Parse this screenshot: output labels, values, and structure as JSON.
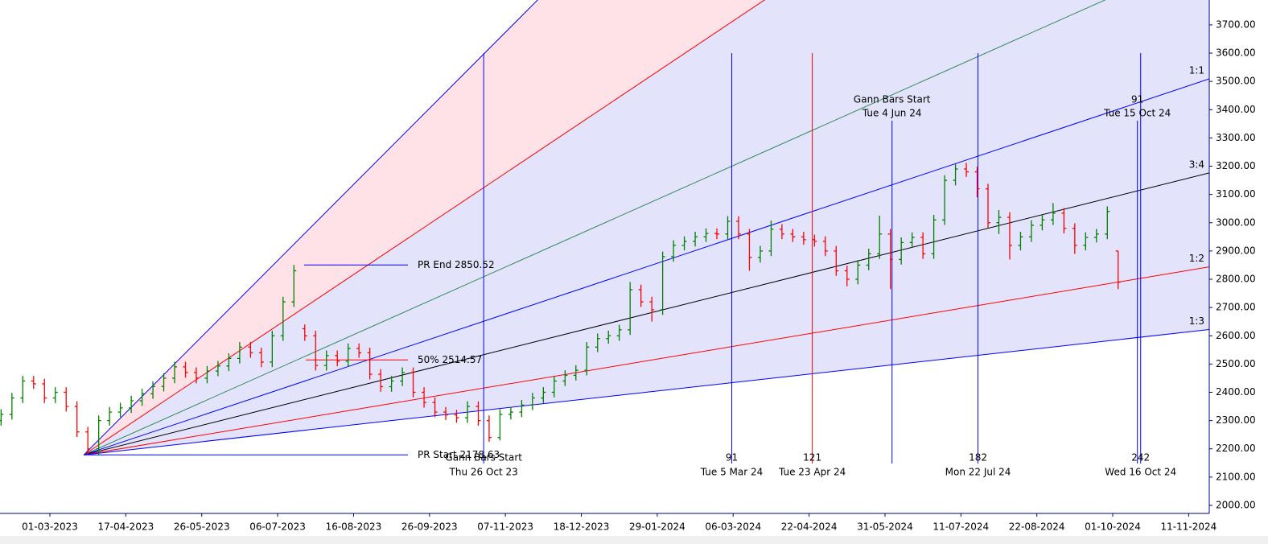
{
  "chart_data": {
    "type": "ohlc",
    "xlim": [
      -18.4,
      427.6
    ],
    "ylim": [
      1971.5,
      3788
    ],
    "xticks": [
      {
        "value": 0,
        "label": "01-03-2023"
      },
      {
        "value": 28,
        "label": "17-04-2023"
      },
      {
        "value": 56,
        "label": "26-05-2023"
      },
      {
        "value": 84,
        "label": "06-07-2023"
      },
      {
        "value": 112,
        "label": "16-08-2023"
      },
      {
        "value": 140,
        "label": "26-09-2023"
      },
      {
        "value": 168,
        "label": "07-11-2023"
      },
      {
        "value": 196,
        "label": "18-12-2023"
      },
      {
        "value": 224,
        "label": "29-01-2024"
      },
      {
        "value": 252,
        "label": "06-03-2024"
      },
      {
        "value": 280,
        "label": "22-04-2024"
      },
      {
        "value": 308,
        "label": "31-05-2024"
      },
      {
        "value": 336,
        "label": "11-07-2024"
      },
      {
        "value": 364,
        "label": "22-08-2024"
      },
      {
        "value": 392,
        "label": "01-10-2024"
      },
      {
        "value": 420,
        "label": "11-11-2024"
      }
    ],
    "yticks": [
      {
        "value": 2000,
        "label": "2000.00"
      },
      {
        "value": 2100,
        "label": "2100.00"
      },
      {
        "value": 2200,
        "label": "2200.00"
      },
      {
        "value": 2300,
        "label": "2300.00"
      },
      {
        "value": 2400,
        "label": "2400.00"
      },
      {
        "value": 2500,
        "label": "2500.00"
      },
      {
        "value": 2600,
        "label": "2600.00"
      },
      {
        "value": 2700,
        "label": "2700.00"
      },
      {
        "value": 2800,
        "label": "2800.00"
      },
      {
        "value": 2900,
        "label": "2900.00"
      },
      {
        "value": 3000,
        "label": "3000.00"
      },
      {
        "value": 3100,
        "label": "3100.00"
      },
      {
        "value": 3200,
        "label": "3200.00"
      },
      {
        "value": 3300,
        "label": "3300.00"
      },
      {
        "value": 3400,
        "label": "3400.00"
      },
      {
        "value": 3500,
        "label": "3500.00"
      },
      {
        "value": 3600,
        "label": "3600.00"
      },
      {
        "value": 3700,
        "label": "3700.00"
      }
    ],
    "up_color": "#008000",
    "down_color": "#ff0000",
    "x": [
      -18,
      -14,
      -10,
      -6,
      -2,
      2,
      6,
      10,
      14,
      18,
      22,
      26,
      30,
      34,
      38,
      42,
      46,
      50,
      54,
      58,
      62,
      66,
      70,
      74,
      78,
      82,
      86,
      90,
      94,
      98,
      102,
      106,
      110,
      114,
      118,
      122,
      126,
      130,
      134,
      138,
      142,
      146,
      150,
      154,
      158,
      162,
      166,
      170,
      174,
      178,
      182,
      186,
      190,
      194,
      198,
      202,
      206,
      210,
      214,
      218,
      222,
      226,
      230,
      234,
      238,
      242,
      246,
      250,
      254,
      258,
      262,
      266,
      270,
      274,
      278,
      282,
      286,
      290,
      294,
      298,
      302,
      306,
      310,
      314,
      318,
      322,
      326,
      330,
      334,
      338,
      342,
      346,
      350,
      354,
      358,
      362,
      366,
      370,
      374,
      378,
      382,
      386,
      390,
      394
    ],
    "open": [
      2300,
      2322,
      2380,
      2440,
      2430,
      2380,
      2400,
      2350,
      2260,
      2200,
      2300,
      2330,
      2345,
      2370,
      2395,
      2421,
      2450,
      2490,
      2470,
      2450,
      2475,
      2493,
      2520,
      2560,
      2540,
      2507,
      2600,
      2720,
      2625,
      2600,
      2495,
      2530,
      2510,
      2555,
      2540,
      2464,
      2420,
      2440,
      2470,
      2400,
      2364,
      2330,
      2320,
      2310,
      2350,
      2300,
      2240,
      2322,
      2330,
      2355,
      2380,
      2400,
      2440,
      2460,
      2478,
      2560,
      2590,
      2600,
      2621,
      2763,
      2720,
      2692,
      2880,
      2920,
      2934,
      2950,
      2962,
      2960,
      3005,
      2960,
      2877,
      2900,
      2977,
      2960,
      2950,
      2940,
      2934,
      2900,
      2830,
      2800,
      2850,
      2890,
      2960,
      2870,
      2930,
      2948,
      2890,
      3010,
      3150,
      3190,
      3180,
      3120,
      3000,
      3019,
      2920,
      2950,
      2991,
      3010,
      3034,
      2980,
      2920,
      2948,
      2960,
      2900
    ],
    "high": [
      2340,
      2398,
      2458,
      2458,
      2448,
      2418,
      2418,
      2368,
      2278,
      2318,
      2348,
      2363,
      2388,
      2413,
      2439,
      2468,
      2508,
      2508,
      2488,
      2493,
      2511,
      2538,
      2578,
      2578,
      2558,
      2618,
      2738,
      2850.52,
      2640,
      2618,
      2548,
      2548,
      2573,
      2573,
      2558,
      2482,
      2458,
      2488,
      2488,
      2418,
      2382,
      2348,
      2338,
      2368,
      2368,
      2318,
      2340,
      2348,
      2373,
      2398,
      2418,
      2458,
      2478,
      2496,
      2578,
      2608,
      2618,
      2639,
      2790,
      2781,
      2738,
      2898,
      2938,
      2952,
      2968,
      2980,
      2980,
      3023,
      3023,
      2978,
      2918,
      3008,
      2995,
      2978,
      2968,
      2958,
      2952,
      2918,
      2848,
      2868,
      2908,
      3025,
      2978,
      2948,
      2966,
      2966,
      3028,
      3168,
      3208,
      3212,
      3198,
      3138,
      3045,
      3037,
      2968,
      3009,
      3028,
      3070,
      3052,
      2998,
      2966,
      2978,
      3058,
      2900
    ],
    "low": [
      2282,
      2304,
      2362,
      2412,
      2362,
      2362,
      2332,
      2242,
      2182,
      2178.63,
      2282,
      2312,
      2327,
      2352,
      2377,
      2403,
      2432,
      2452,
      2432,
      2432,
      2457,
      2475,
      2502,
      2522,
      2489,
      2489,
      2582,
      2702,
      2582,
      2477,
      2477,
      2492,
      2492,
      2522,
      2446,
      2402,
      2402,
      2422,
      2382,
      2346,
      2312,
      2302,
      2292,
      2292,
      2282,
      2225,
      2230,
      2304,
      2312,
      2337,
      2362,
      2382,
      2422,
      2442,
      2460,
      2542,
      2572,
      2582,
      2603,
      2702,
      2650,
      2674,
      2862,
      2902,
      2916,
      2932,
      2942,
      2942,
      2942,
      2830,
      2859,
      2882,
      2942,
      2932,
      2922,
      2916,
      2882,
      2812,
      2775,
      2782,
      2832,
      2872,
      2765,
      2852,
      2912,
      2872,
      2872,
      2992,
      3132,
      3162,
      3090,
      2982,
      2960,
      2870,
      2902,
      2932,
      2973,
      2992,
      2962,
      2890,
      2902,
      2930,
      2942,
      2765
    ],
    "close": [
      2322,
      2380,
      2440,
      2430,
      2380,
      2400,
      2350,
      2260,
      2200,
      2300,
      2330,
      2345,
      2370,
      2395,
      2421,
      2450,
      2490,
      2470,
      2450,
      2475,
      2493,
      2520,
      2560,
      2540,
      2507,
      2600,
      2720,
      2830,
      2600,
      2495,
      2530,
      2510,
      2555,
      2540,
      2464,
      2420,
      2440,
      2470,
      2400,
      2364,
      2330,
      2320,
      2310,
      2350,
      2300,
      2240,
      2322,
      2330,
      2355,
      2380,
      2400,
      2440,
      2460,
      2478,
      2560,
      2590,
      2600,
      2621,
      2763,
      2720,
      2692,
      2880,
      2920,
      2934,
      2950,
      2962,
      2960,
      3005,
      2960,
      2877,
      2900,
      2977,
      2960,
      2950,
      2940,
      2934,
      2900,
      2830,
      2800,
      2850,
      2890,
      2960,
      2870,
      2930,
      2948,
      2890,
      3010,
      3150,
      3190,
      3180,
      3120,
      3000,
      3019,
      2920,
      2950,
      2991,
      3010,
      3034,
      2980,
      2920,
      2948,
      2960,
      3040,
      2790
    ],
    "fan": {
      "origin_x": 12.5,
      "origin_price": 2178.63,
      "unit": 3.205,
      "fills": [
        {
          "from": 3,
          "to": 2,
          "color": "#ffe1e8"
        },
        {
          "from": 2,
          "to": 0.3333,
          "color": "#e3e3fb"
        }
      ],
      "lines": [
        {
          "ratio": 3,
          "color": "#0000ff"
        },
        {
          "ratio": 2,
          "color": "#ff0000"
        },
        {
          "ratio": 1.3333,
          "color": "#2e8b57"
        },
        {
          "ratio": 1,
          "color": "#0000ff",
          "label": "1:1"
        },
        {
          "ratio": 0.75,
          "color": "#000000",
          "label": "3:4"
        },
        {
          "ratio": 0.5,
          "color": "#ff0000",
          "label": "1:2"
        },
        {
          "ratio": 0.3333,
          "color": "#0000ff",
          "label": "1:3"
        }
      ]
    },
    "levels": [
      {
        "value": 2850.52,
        "label": "PR End 2850.52",
        "color": "#0000ff"
      },
      {
        "value": 2514.57,
        "label": "50% 2514.57",
        "color": "#ff0000"
      },
      {
        "value": 2178.63,
        "label": "PR Start 2178.63",
        "color": "#0000ff"
      }
    ],
    "markers": [
      {
        "x": 160,
        "color": "#0000ff",
        "place": "bottom",
        "label": "Gann Bars Start",
        "date": "Thu 26 Oct 23"
      },
      {
        "x": 251.5,
        "color": "#0000ff",
        "place": "bottom",
        "label": 91,
        "date": "Tue 5 Mar 24"
      },
      {
        "x": 281.2,
        "color": "#ff0000",
        "place": "bottom",
        "label": 121,
        "date": "Tue 23 Apr 24"
      },
      {
        "x": 310.6,
        "color": "#0000ff",
        "place": "top",
        "label": "Gann Bars Start",
        "date": "Tue 4 Jun 24"
      },
      {
        "x": 342.3,
        "color": "#0000ff",
        "place": "bottom",
        "label": 182,
        "date": "Mon 22 Jul 24"
      },
      {
        "x": 401.1,
        "color": "#0000ff",
        "place": "top",
        "label": 91,
        "date": "Tue 15 Oct 24"
      },
      {
        "x": 402.3,
        "color": "#0000ff",
        "place": "bottom",
        "label": 242,
        "date": "Wed 16 Oct 24"
      }
    ]
  }
}
